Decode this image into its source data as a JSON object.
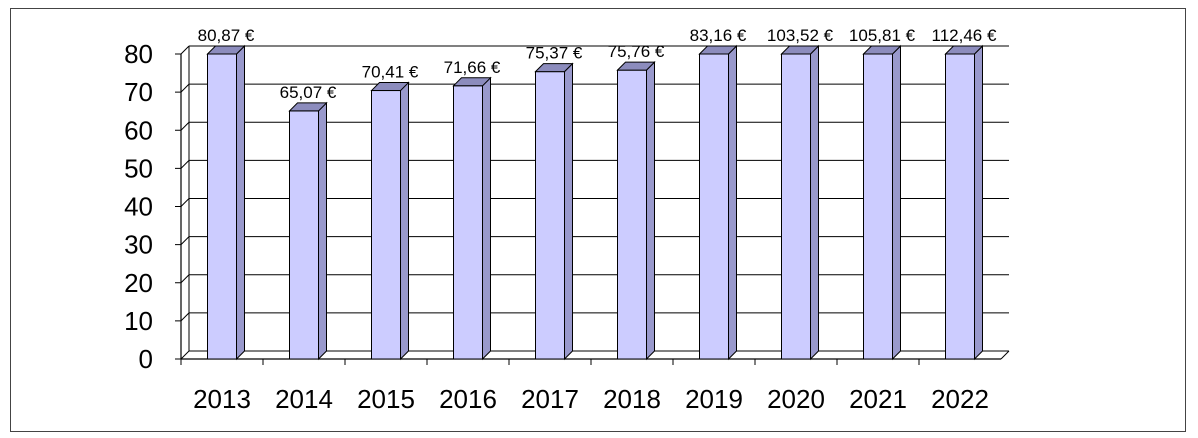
{
  "chart_data": {
    "type": "bar",
    "title": "",
    "xlabel": "",
    "ylabel": "",
    "categories": [
      "2013",
      "2014",
      "2015",
      "2016",
      "2017",
      "2018",
      "2019",
      "2020",
      "2021",
      "2022"
    ],
    "values": [
      80.87,
      65.07,
      70.41,
      71.66,
      75.37,
      75.76,
      83.16,
      103.52,
      105.81,
      112.46
    ],
    "data_labels": [
      "80,87 €",
      "65,07 €",
      "70,41 €",
      "71,66 €",
      "75,37 €",
      "75,76 €",
      "83,16 €",
      "103,52 €",
      "105,81 €",
      "112,46 €"
    ],
    "ylim": [
      0,
      80
    ],
    "yticks": [
      "0",
      "10",
      "20",
      "30",
      "40",
      "50",
      "60",
      "70",
      "80"
    ],
    "grid": true,
    "legend": "none",
    "colors": {
      "bar_front": "#ccccff",
      "bar_side": "#9999cc",
      "bar_top": "#8c8cbd",
      "outline": "#000000",
      "gridline": "#000000"
    }
  }
}
